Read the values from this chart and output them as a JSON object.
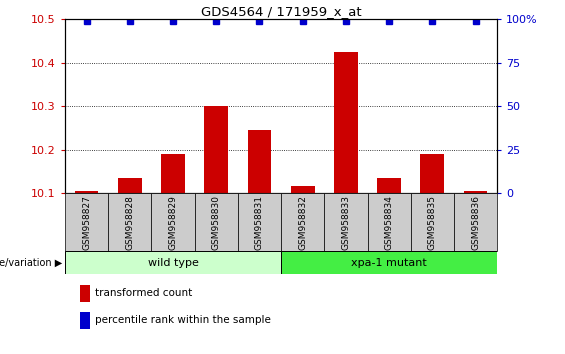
{
  "title": "GDS4564 / 171959_x_at",
  "samples": [
    "GSM958827",
    "GSM958828",
    "GSM958829",
    "GSM958830",
    "GSM958831",
    "GSM958832",
    "GSM958833",
    "GSM958834",
    "GSM958835",
    "GSM958836"
  ],
  "transformed_counts": [
    10.105,
    10.135,
    10.19,
    10.3,
    10.245,
    10.115,
    10.425,
    10.135,
    10.19,
    10.105
  ],
  "percentile_ranks": [
    99,
    99,
    99,
    99,
    99,
    99,
    99,
    99,
    99,
    99
  ],
  "ylim_left": [
    10.1,
    10.5
  ],
  "ylim_right": [
    0,
    100
  ],
  "yticks_left": [
    10.1,
    10.2,
    10.3,
    10.4,
    10.5
  ],
  "yticks_right": [
    0,
    25,
    50,
    75,
    100
  ],
  "bar_color": "#cc0000",
  "dot_color": "#0000cc",
  "group1_label": "wild type",
  "group1_samples": [
    0,
    1,
    2,
    3,
    4
  ],
  "group2_label": "xpa-1 mutant",
  "group2_samples": [
    5,
    6,
    7,
    8,
    9
  ],
  "group1_color": "#ccffcc",
  "group2_color": "#44ee44",
  "group_label": "genotype/variation",
  "legend_bar_label": "transformed count",
  "legend_dot_label": "percentile rank within the sample",
  "background_color": "#ffffff",
  "sample_bg_color": "#cccccc"
}
